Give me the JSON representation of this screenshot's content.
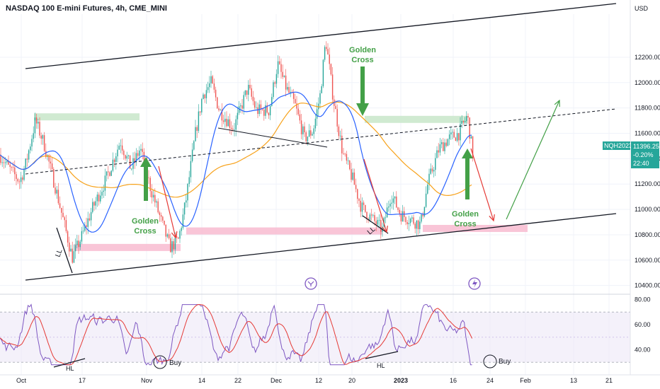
{
  "header": {
    "title": "NASDAQ 100 E-mini Futures, 4h, CME_MINI",
    "currency": "USD"
  },
  "price_tag": {
    "symbol": "NQH2023",
    "price": "11396.25",
    "change": "-0.20%",
    "countdown": "22:40",
    "color": "#26a69a"
  },
  "annotations": {
    "golden_cross_1": [
      "Golden",
      "Cross"
    ],
    "golden_cross_2": [
      "Golden",
      "Cross"
    ],
    "golden_cross_3": [
      "Golden",
      "Cross"
    ],
    "ll_1": "LL",
    "ll_2": "LL",
    "hl_1": "HL",
    "hl_2": "HL",
    "buy_1": "Buy",
    "buy_2": "Buy"
  },
  "colors": {
    "ma_blue": "#2962ff",
    "ma_orange": "#f7a21b",
    "rsi_line": "#7e57c2",
    "rsi_ma": "#e53935",
    "arrow_green": "#43a047",
    "arrow_red": "#e53935",
    "zone_green": "#c8e6c9",
    "zone_red": "#f8bbd0"
  },
  "chart_data": [
    {
      "type": "candlestick",
      "title": "NASDAQ 100 E-mini Futures, 4h, CME_MINI",
      "y_label": "USD",
      "ylim": [
        10320,
        12540
      ],
      "y_ticks": [
        10400,
        10600,
        10800,
        11000,
        11200,
        11400,
        11600,
        11800,
        12000,
        12200
      ],
      "y_tick_labels": [
        "10400.00",
        "10600.00",
        "10800.00",
        "11000.00",
        "11200.00",
        "11400.00",
        "11600.00",
        "11800.00",
        "12000.00",
        "12200.00"
      ],
      "x_tick_labels": [
        "Oct",
        "17",
        "Nov",
        "14",
        "22",
        "Dec",
        "12",
        "20",
        "2023",
        "16",
        "24",
        "Feb",
        "13",
        "21"
      ],
      "key_points": [
        {
          "label": "LL",
          "price": 10580
        },
        {
          "label": "resistance zone 1",
          "price": 11730
        },
        {
          "label": "support zone 1",
          "price": 10700
        },
        {
          "label": "support zone 2",
          "price": 10830
        },
        {
          "label": "resistance zone 2",
          "price": 11710
        },
        {
          "label": "LL",
          "price": 10780
        },
        {
          "label": "support zone 3",
          "price": 10850
        },
        {
          "label": "last",
          "price": 11396.25
        }
      ],
      "legend": "none"
    },
    {
      "type": "line",
      "title": "RSI",
      "ylim": [
        20,
        82
      ],
      "y_ticks": [
        40,
        60,
        80
      ],
      "y_tick_labels": [
        "40.00",
        "60.00",
        "80.00"
      ],
      "bands": [
        30,
        70
      ]
    }
  ]
}
